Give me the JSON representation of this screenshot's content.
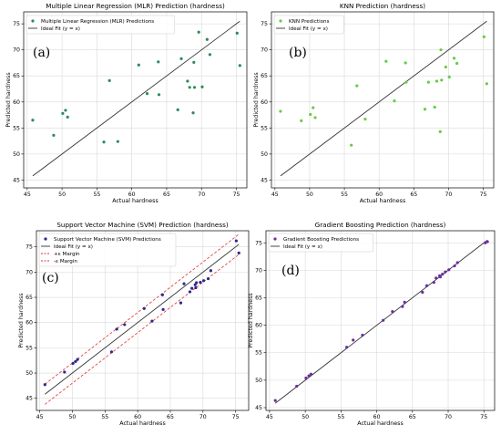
{
  "chart_data": [
    {
      "type": "scatter",
      "panel_label": "(a)",
      "title": "Multiple Linear Regression (MLR) Prediction (hardness)",
      "xlabel": "Actual hardness",
      "ylabel": "Predicted hardness",
      "xlim": [
        44.5,
        76.5
      ],
      "ylim": [
        43.5,
        77.3
      ],
      "xticks": [
        45,
        50,
        55,
        60,
        65,
        70,
        75
      ],
      "yticks": [
        45,
        50,
        55,
        60,
        65,
        70,
        75
      ],
      "grid": true,
      "legend_position": "top-left",
      "series": [
        {
          "name": "Multiple Linear Regression (MLR) Predictions",
          "kind": "points",
          "color": "#2e8b57",
          "x": [
            45.8,
            48.8,
            50.1,
            50.5,
            50.8,
            56,
            56.8,
            58,
            61,
            62.2,
            63.8,
            63.9,
            66.6,
            67.1,
            68,
            68.3,
            68.8,
            68.9,
            69,
            69.6,
            70.1,
            70.8,
            71.2,
            75.1,
            75.5
          ],
          "y": [
            56.5,
            53.6,
            57.8,
            58.4,
            57.1,
            52.3,
            64.1,
            52.4,
            67.1,
            61.6,
            67.7,
            61.4,
            58.5,
            68.3,
            64,
            62.8,
            57.9,
            67.6,
            62.8,
            73.4,
            62.9,
            72,
            69.1,
            73.2,
            67
          ]
        },
        {
          "name": "Ideal Fit (y = x)",
          "kind": "line",
          "color": "#333333",
          "x": [
            45.8,
            75.5
          ],
          "y": [
            45.8,
            75.5
          ]
        }
      ]
    },
    {
      "type": "scatter",
      "panel_label": "(b)",
      "title": "KNN Prediction (hardness)",
      "xlabel": "Actual hardness",
      "ylabel": "Predicted hardness",
      "xlim": [
        44.5,
        76.5
      ],
      "ylim": [
        43.5,
        77.3
      ],
      "xticks": [
        45,
        50,
        55,
        60,
        65,
        70,
        75
      ],
      "yticks": [
        45,
        50,
        55,
        60,
        65,
        70,
        75
      ],
      "grid": true,
      "legend_position": "top-left",
      "series": [
        {
          "name": "KNN Predictions",
          "kind": "points",
          "color": "#66cc44",
          "x": [
            45.8,
            48.8,
            50.1,
            50.5,
            50.8,
            56,
            56.8,
            58,
            61,
            62.2,
            63.8,
            63.9,
            66.6,
            67.1,
            68,
            68.3,
            68.8,
            68.9,
            69,
            69.6,
            70.1,
            70.8,
            71.2,
            75.1,
            75.5
          ],
          "y": [
            58.2,
            56.4,
            57.6,
            58.9,
            57,
            51.7,
            63.1,
            56.7,
            67.8,
            60.2,
            67.5,
            63.8,
            58.6,
            63.8,
            59,
            64,
            54.3,
            70,
            64.2,
            66.7,
            64.8,
            68.4,
            67.4,
            72.5,
            63.5
          ]
        },
        {
          "name": "Ideal Fit (y = x)",
          "kind": "line",
          "color": "#333333",
          "x": [
            45.8,
            75.5
          ],
          "y": [
            45.8,
            75.5
          ]
        }
      ]
    },
    {
      "type": "scatter",
      "panel_label": "(c)",
      "title": "Support Vector Machine (SVM) Prediction (hardness)",
      "xlabel": "Actual hardness",
      "ylabel": "Predicted hardness",
      "xlim": [
        44.5,
        77
      ],
      "ylim": [
        42.6,
        78.2
      ],
      "xticks": [
        45,
        50,
        55,
        60,
        65,
        70,
        75
      ],
      "yticks": [
        45,
        50,
        55,
        60,
        65,
        70,
        75
      ],
      "grid": true,
      "legend_position": "top-left",
      "series": [
        {
          "name": "Support Vector Machine (SVM) Predictions",
          "kind": "points",
          "color": "#2b2b8c",
          "x": [
            45.8,
            48.8,
            50.1,
            50.5,
            50.8,
            56,
            56.8,
            58,
            61,
            62.2,
            63.8,
            63.9,
            66.6,
            67.1,
            68,
            68.3,
            68.8,
            68.9,
            69,
            69.6,
            70.1,
            70.8,
            71.2,
            75.1,
            75.5
          ],
          "y": [
            47.7,
            50.2,
            51.9,
            52.3,
            52.7,
            54.2,
            58.7,
            59.6,
            62.8,
            60.3,
            65.5,
            62.6,
            63.9,
            67.7,
            66.1,
            66.8,
            67.5,
            66.9,
            67.9,
            68,
            68.3,
            68.7,
            70.3,
            76.2,
            73.8
          ]
        },
        {
          "name": "Ideal Fit (y = x)",
          "kind": "line",
          "color": "#333333",
          "x": [
            45.8,
            75.5
          ],
          "y": [
            45.8,
            75.5
          ]
        },
        {
          "name": "+ε Margin",
          "kind": "line",
          "style": "dashed",
          "color": "#e03030",
          "x": [
            45.8,
            75.5
          ],
          "y": [
            47.8,
            77.5
          ]
        },
        {
          "name": "-ε Margin",
          "kind": "line",
          "style": "dashed",
          "color": "#e03030",
          "x": [
            45.8,
            75.5
          ],
          "y": [
            43.8,
            73.5
          ]
        }
      ]
    },
    {
      "type": "scatter",
      "panel_label": "(d)",
      "title": "Gradient Boosting Prediction (hardness)",
      "xlabel": "Actual hardness",
      "ylabel": "Predicted hardness",
      "xlim": [
        44.5,
        76.5
      ],
      "ylim": [
        44.5,
        77.2
      ],
      "xticks": [
        45,
        50,
        55,
        60,
        65,
        70,
        75
      ],
      "yticks": [
        45,
        50,
        55,
        60,
        65,
        70,
        75
      ],
      "grid": true,
      "legend_position": "top-left",
      "series": [
        {
          "name": "Gradient Boosting Predictions",
          "kind": "points",
          "color": "#6a2f9e",
          "x": [
            45.8,
            48.8,
            50.1,
            50.5,
            50.8,
            55.8,
            56.7,
            58,
            60.9,
            62.2,
            63.6,
            63.9,
            66.4,
            67,
            68,
            68.3,
            68.8,
            68.9,
            69.2,
            69.6,
            70.1,
            70.9,
            71.3,
            75.2,
            75.5
          ],
          "y": [
            46.3,
            48.9,
            50.4,
            50.8,
            51.1,
            56,
            57.3,
            58.2,
            60.9,
            62.5,
            63.4,
            64.2,
            66,
            67.2,
            67.8,
            68.6,
            69,
            68.8,
            69.3,
            69.7,
            70.1,
            70.8,
            71.4,
            75,
            75.2
          ]
        },
        {
          "name": "Ideal Fit (y = x)",
          "kind": "line",
          "color": "#333333",
          "x": [
            45.8,
            75.5
          ],
          "y": [
            45.8,
            75.5
          ]
        }
      ]
    }
  ]
}
